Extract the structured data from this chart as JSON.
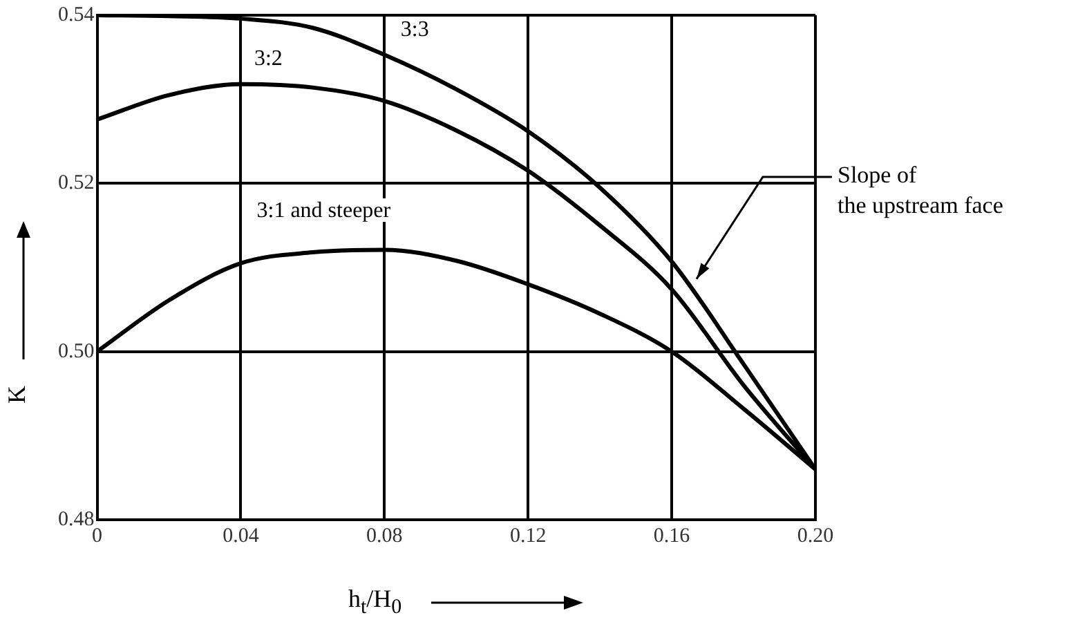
{
  "chart_data": {
    "type": "line",
    "xlabel": "h$_{t}$/H$_{0}$",
    "ylabel": "K",
    "x": [
      0,
      0.02,
      0.04,
      0.06,
      0.08,
      0.1,
      0.12,
      0.14,
      0.16,
      0.18,
      0.2
    ],
    "series": [
      {
        "name": "3:3",
        "color": "#000000",
        "values": [
          0.54,
          0.5399,
          0.5396,
          0.5385,
          0.5353,
          0.5312,
          0.5262,
          0.5195,
          0.5107,
          0.4985,
          0.486
        ]
      },
      {
        "name": "3:2",
        "color": "#000000",
        "values": [
          0.5276,
          0.5305,
          0.5318,
          0.5314,
          0.5298,
          0.5263,
          0.5215,
          0.515,
          0.5074,
          0.496,
          0.486
        ]
      },
      {
        "name": "3:1 and steeper",
        "color": "#000000",
        "values": [
          0.5,
          0.5061,
          0.5105,
          0.5118,
          0.5121,
          0.5108,
          0.508,
          0.5045,
          0.5,
          0.4932,
          0.486
        ]
      }
    ],
    "xlim": [
      0,
      0.2
    ],
    "xticks": [
      0,
      0.04,
      0.08,
      0.12,
      0.16,
      {
        "value": 0.2,
        "label": "0.20"
      }
    ],
    "ylim": [
      0.48,
      0.54
    ],
    "yticks": [
      0.48,
      {
        "value": 0.5,
        "label": "0.50"
      },
      0.52,
      0.54
    ],
    "annotations": [
      "Slope of\nthe upstream face"
    ],
    "grid": true,
    "legend": false,
    "marker": "none",
    "line_style": "solid"
  }
}
